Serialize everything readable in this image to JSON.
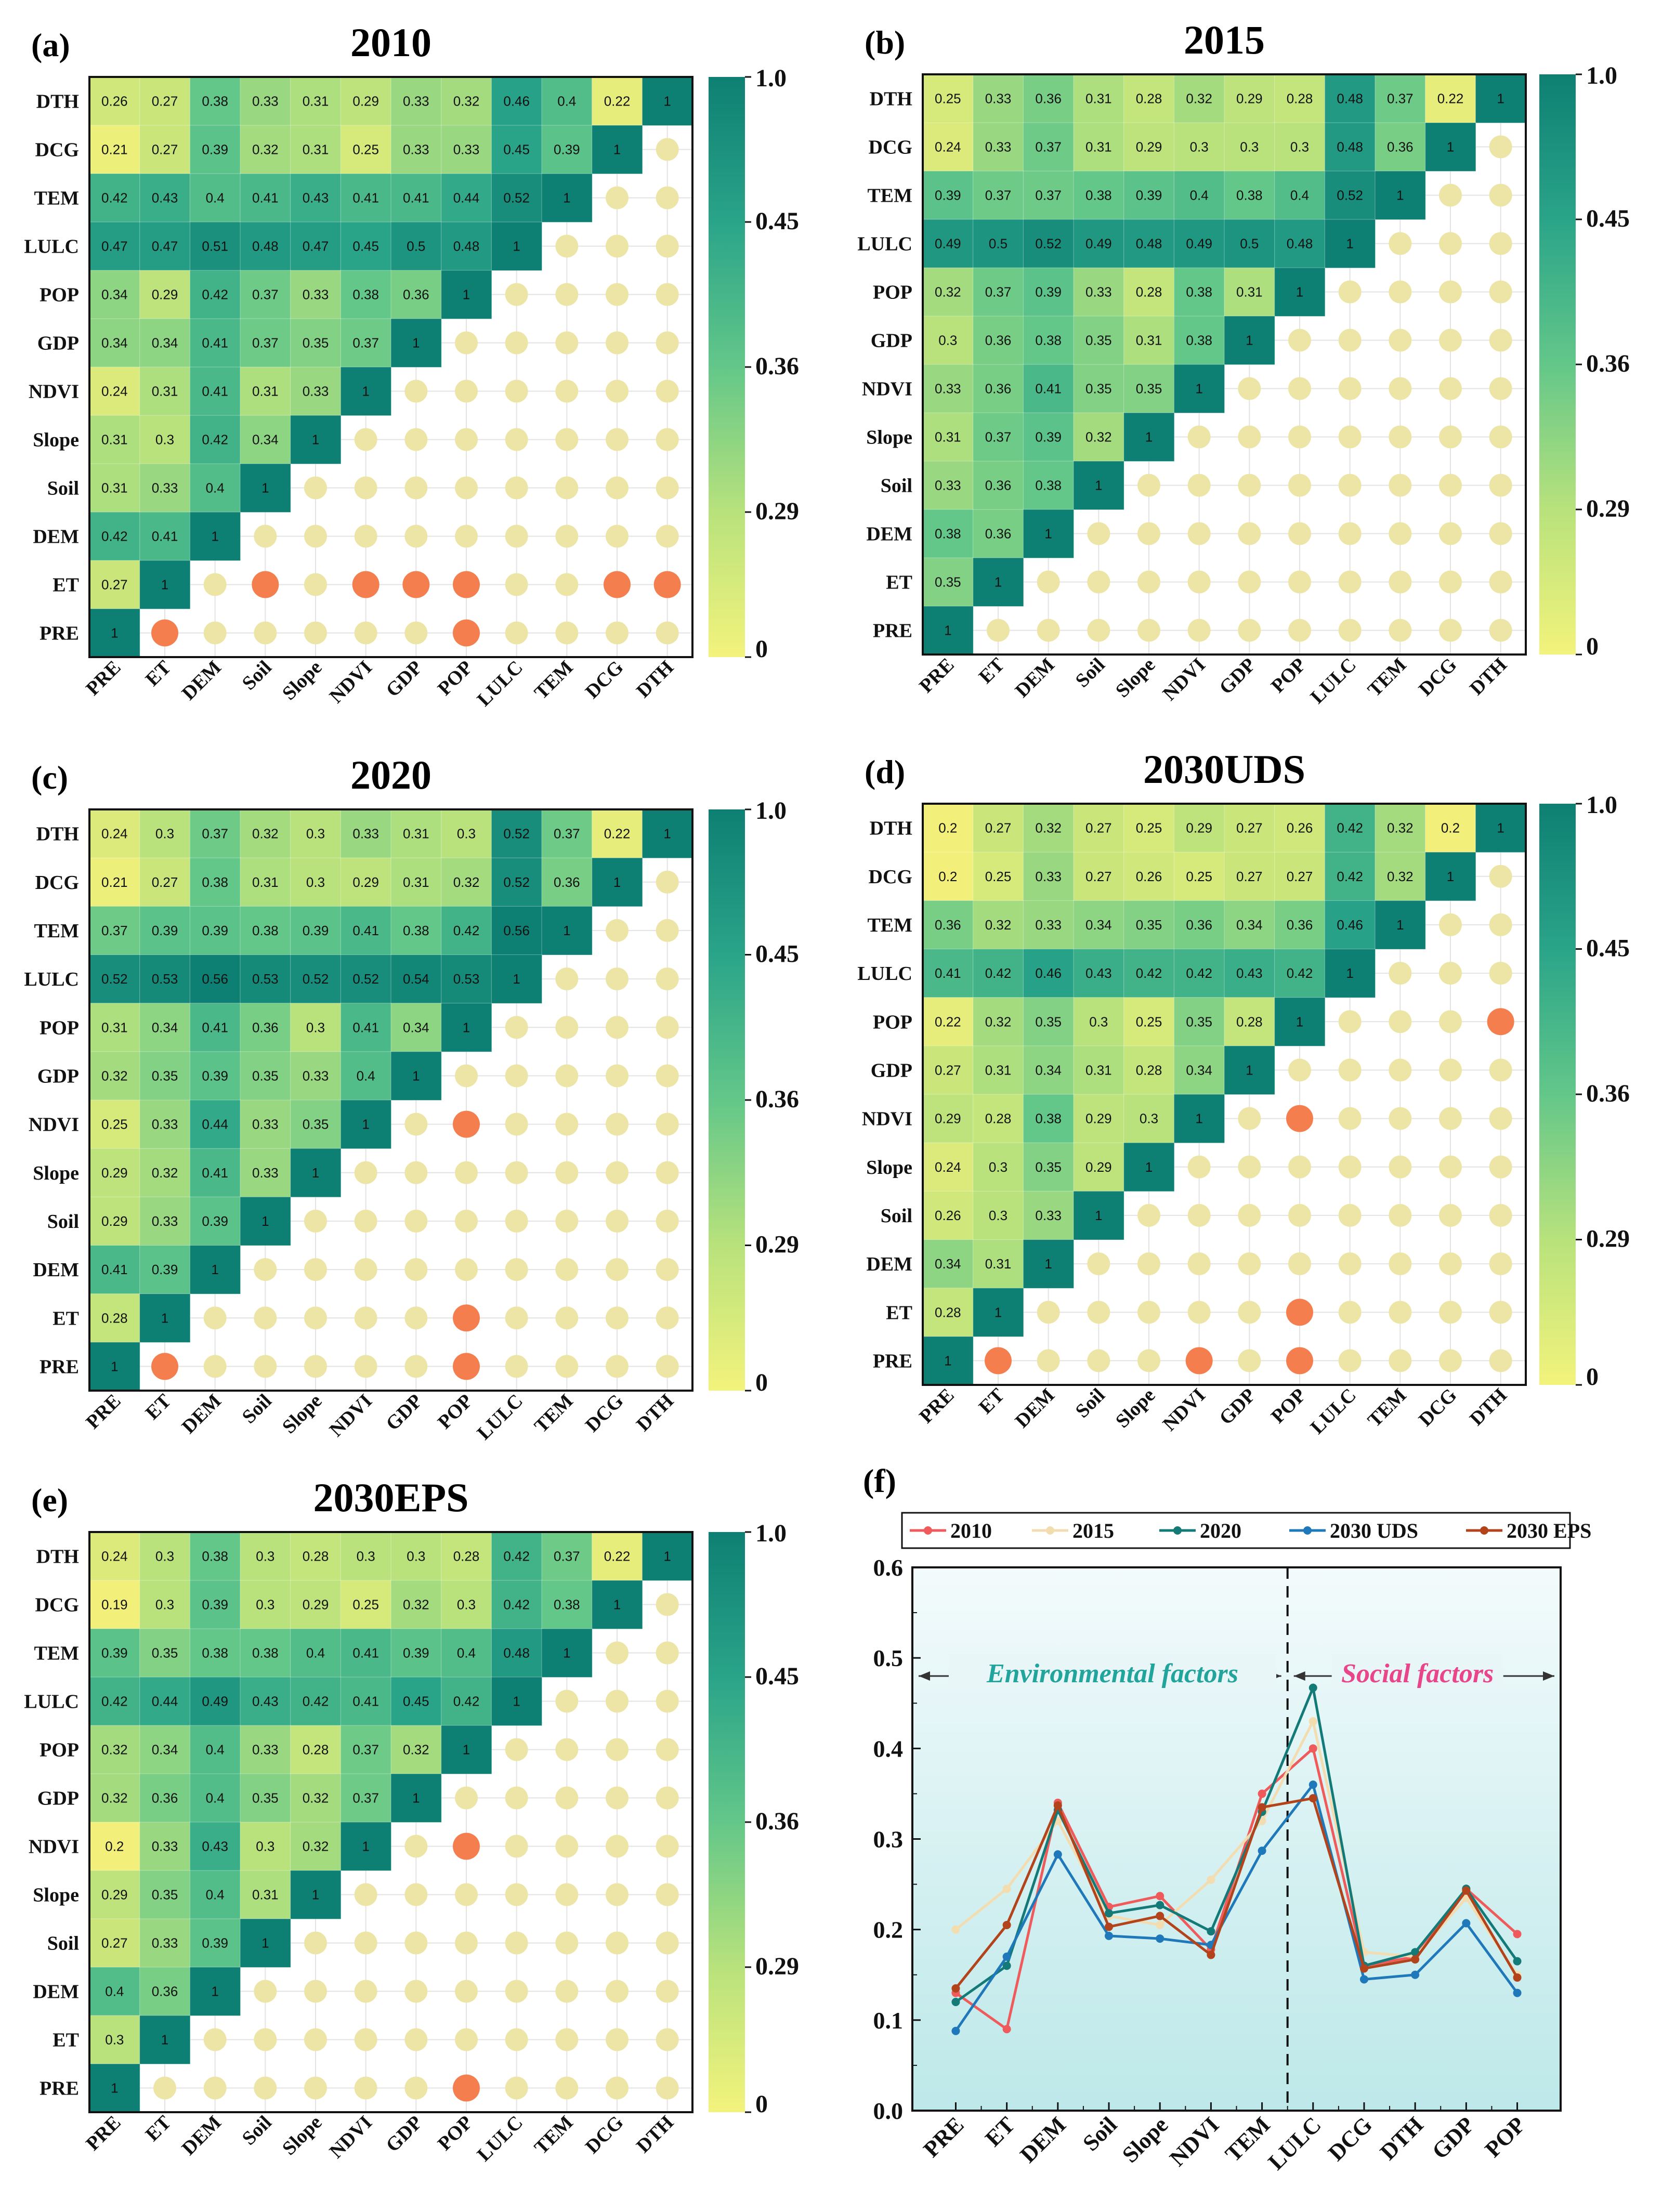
{
  "figure": {
    "factors": [
      "PRE",
      "ET",
      "DEM",
      "Soil",
      "Slope",
      "NDVI",
      "GDP",
      "POP",
      "LULC",
      "TEM",
      "DCG",
      "DTH"
    ],
    "colors": {
      "scale_low": "#f2f07a",
      "scale_mid1": "#b9e27c",
      "scale_mid2": "#63c789",
      "scale_mid3": "#2aa489",
      "scale_high": "#0e8073",
      "insignificant_dot": "#ece5a5",
      "significant_dot": "#f47e4e",
      "grid_line": "#e3e3e3"
    },
    "colorbar_ticks": [
      "1.0",
      "0.45",
      "0.36",
      "0.29",
      "0"
    ],
    "panels": [
      {
        "label": "(a)",
        "title": "2010",
        "cells": {
          "DTH": [
            0.26,
            0.27,
            0.38,
            0.33,
            0.31,
            0.29,
            0.33,
            0.32,
            0.46,
            0.4,
            0.22,
            1
          ],
          "DCG": [
            0.21,
            0.27,
            0.39,
            0.32,
            0.31,
            0.25,
            0.33,
            0.33,
            0.45,
            0.39,
            1
          ],
          "TEM": [
            0.42,
            0.43,
            0.4,
            0.41,
            0.43,
            0.41,
            0.41,
            0.44,
            0.52,
            1
          ],
          "LULC": [
            0.47,
            0.47,
            0.51,
            0.48,
            0.47,
            0.45,
            0.5,
            0.48,
            1
          ],
          "POP": [
            0.34,
            0.29,
            0.42,
            0.37,
            0.33,
            0.38,
            0.36,
            1
          ],
          "GDP": [
            0.34,
            0.34,
            0.41,
            0.37,
            0.35,
            0.37,
            1
          ],
          "NDVI": [
            0.24,
            0.31,
            0.41,
            0.31,
            0.33,
            1
          ],
          "Slope": [
            0.31,
            0.3,
            0.42,
            0.34,
            1
          ],
          "Soil": [
            0.31,
            0.33,
            0.4,
            1
          ],
          "DEM": [
            0.42,
            0.41,
            1
          ],
          "ET": [
            0.27,
            1
          ],
          "PRE": [
            1
          ]
        },
        "significant": [
          [
            "ET",
            "Soil"
          ],
          [
            "ET",
            "NDVI"
          ],
          [
            "ET",
            "GDP"
          ],
          [
            "ET",
            "POP"
          ],
          [
            "ET",
            "DCG"
          ],
          [
            "ET",
            "DTH"
          ],
          [
            "PRE",
            "ET"
          ],
          [
            "PRE",
            "POP"
          ]
        ]
      },
      {
        "label": "(b)",
        "title": "2015",
        "cells": {
          "DTH": [
            0.25,
            0.33,
            0.36,
            0.31,
            0.28,
            0.32,
            0.29,
            0.28,
            0.48,
            0.37,
            0.22,
            1
          ],
          "DCG": [
            0.24,
            0.33,
            0.37,
            0.31,
            0.29,
            0.3,
            0.3,
            0.3,
            0.48,
            0.36,
            1
          ],
          "TEM": [
            0.39,
            0.37,
            0.37,
            0.38,
            0.39,
            0.4,
            0.38,
            0.4,
            0.52,
            1
          ],
          "LULC": [
            0.49,
            0.5,
            0.52,
            0.49,
            0.48,
            0.49,
            0.5,
            0.48,
            1
          ],
          "POP": [
            0.32,
            0.37,
            0.39,
            0.33,
            0.28,
            0.38,
            0.31,
            1
          ],
          "GDP": [
            0.3,
            0.36,
            0.38,
            0.35,
            0.31,
            0.38,
            1
          ],
          "NDVI": [
            0.33,
            0.36,
            0.41,
            0.35,
            0.35,
            1
          ],
          "Slope": [
            0.31,
            0.37,
            0.39,
            0.32,
            1
          ],
          "Soil": [
            0.33,
            0.36,
            0.38,
            1
          ],
          "DEM": [
            0.38,
            0.36,
            1
          ],
          "ET": [
            0.35,
            1
          ],
          "PRE": [
            1
          ]
        },
        "significant": []
      },
      {
        "label": "(c)",
        "title": "2020",
        "cells": {
          "DTH": [
            0.24,
            0.3,
            0.37,
            0.32,
            0.3,
            0.33,
            0.31,
            0.3,
            0.52,
            0.37,
            0.22,
            1
          ],
          "DCG": [
            0.21,
            0.27,
            0.38,
            0.31,
            0.3,
            0.29,
            0.31,
            0.32,
            0.52,
            0.36,
            1
          ],
          "TEM": [
            0.37,
            0.39,
            0.39,
            0.38,
            0.39,
            0.41,
            0.38,
            0.42,
            0.56,
            1
          ],
          "LULC": [
            0.52,
            0.53,
            0.56,
            0.53,
            0.52,
            0.52,
            0.54,
            0.53,
            1
          ],
          "POP": [
            0.31,
            0.34,
            0.41,
            0.36,
            0.3,
            0.41,
            0.34,
            1
          ],
          "GDP": [
            0.32,
            0.35,
            0.39,
            0.35,
            0.33,
            0.4,
            1
          ],
          "NDVI": [
            0.25,
            0.33,
            0.44,
            0.33,
            0.35,
            1
          ],
          "Slope": [
            0.29,
            0.32,
            0.41,
            0.33,
            1
          ],
          "Soil": [
            0.29,
            0.33,
            0.39,
            1
          ],
          "DEM": [
            0.41,
            0.39,
            1
          ],
          "ET": [
            0.28,
            1
          ],
          "PRE": [
            1
          ]
        },
        "significant": [
          [
            "NDVI",
            "POP"
          ],
          [
            "ET",
            "POP"
          ],
          [
            "PRE",
            "ET"
          ],
          [
            "PRE",
            "POP"
          ]
        ]
      },
      {
        "label": "(d)",
        "title": "2030UDS",
        "cells": {
          "DTH": [
            0.2,
            0.27,
            0.32,
            0.27,
            0.25,
            0.29,
            0.27,
            0.26,
            0.42,
            0.32,
            0.2,
            1
          ],
          "DCG": [
            0.2,
            0.25,
            0.33,
            0.27,
            0.26,
            0.25,
            0.27,
            0.27,
            0.42,
            0.32,
            1
          ],
          "TEM": [
            0.36,
            0.32,
            0.33,
            0.34,
            0.35,
            0.36,
            0.34,
            0.36,
            0.46,
            1
          ],
          "LULC": [
            0.41,
            0.42,
            0.46,
            0.43,
            0.42,
            0.42,
            0.43,
            0.42,
            1
          ],
          "POP": [
            0.22,
            0.32,
            0.35,
            0.3,
            0.25,
            0.35,
            0.28,
            1
          ],
          "GDP": [
            0.27,
            0.31,
            0.34,
            0.31,
            0.28,
            0.34,
            1
          ],
          "NDVI": [
            0.29,
            0.28,
            0.38,
            0.29,
            0.3,
            1
          ],
          "Slope": [
            0.24,
            0.3,
            0.35,
            0.29,
            1
          ],
          "Soil": [
            0.26,
            0.3,
            0.33,
            1
          ],
          "DEM": [
            0.34,
            0.31,
            1
          ],
          "ET": [
            0.28,
            1
          ],
          "PRE": [
            1
          ]
        },
        "significant": [
          [
            "POP",
            "DTH"
          ],
          [
            "NDVI",
            "POP"
          ],
          [
            "ET",
            "POP"
          ],
          [
            "PRE",
            "ET"
          ],
          [
            "PRE",
            "NDVI"
          ],
          [
            "PRE",
            "POP"
          ]
        ]
      },
      {
        "label": "(e)",
        "title": "2030EPS",
        "cells": {
          "DTH": [
            0.24,
            0.3,
            0.38,
            0.3,
            0.28,
            0.3,
            0.3,
            0.28,
            0.42,
            0.37,
            0.22,
            1
          ],
          "DCG": [
            0.19,
            0.3,
            0.39,
            0.3,
            0.29,
            0.25,
            0.32,
            0.3,
            0.42,
            0.38,
            1
          ],
          "TEM": [
            0.39,
            0.35,
            0.38,
            0.38,
            0.4,
            0.41,
            0.39,
            0.4,
            0.48,
            1
          ],
          "LULC": [
            0.42,
            0.44,
            0.49,
            0.43,
            0.42,
            0.41,
            0.45,
            0.42,
            1
          ],
          "POP": [
            0.32,
            0.34,
            0.4,
            0.33,
            0.28,
            0.37,
            0.32,
            1
          ],
          "GDP": [
            0.32,
            0.36,
            0.4,
            0.35,
            0.32,
            0.37,
            1
          ],
          "NDVI": [
            0.2,
            0.33,
            0.43,
            0.3,
            0.32,
            1
          ],
          "Slope": [
            0.29,
            0.35,
            0.4,
            0.31,
            1
          ],
          "Soil": [
            0.27,
            0.33,
            0.39,
            1
          ],
          "DEM": [
            0.4,
            0.36,
            1
          ],
          "ET": [
            0.3,
            1
          ],
          "PRE": [
            1
          ]
        },
        "significant": [
          [
            "NDVI",
            "POP"
          ],
          [
            "PRE",
            "POP"
          ]
        ]
      }
    ]
  },
  "chart_data": {
    "type": "line",
    "panel_label": "(f)",
    "categories": [
      "PRE",
      "ET",
      "DEM",
      "Soil",
      "Slope",
      "NDVI",
      "TEM",
      "LULC",
      "DCG",
      "DTH",
      "GDP",
      "POP"
    ],
    "series": [
      {
        "name": "2010",
        "color": "#ef5b5b",
        "values": [
          0.13,
          0.09,
          0.34,
          0.225,
          0.237,
          0.178,
          0.35,
          0.4,
          0.16,
          0.17,
          0.245,
          0.195
        ]
      },
      {
        "name": "2015",
        "color": "#f3ddb0",
        "values": [
          0.2,
          0.245,
          0.32,
          0.215,
          0.205,
          0.255,
          0.32,
          0.43,
          0.175,
          0.17,
          0.235,
          0.15
        ]
      },
      {
        "name": "2020",
        "color": "#137a78",
        "values": [
          0.12,
          0.16,
          0.332,
          0.218,
          0.227,
          0.198,
          0.33,
          0.467,
          0.16,
          0.175,
          0.245,
          0.165
        ]
      },
      {
        "name": "2030 UDS",
        "color": "#1f78b9",
        "values": [
          0.088,
          0.17,
          0.283,
          0.193,
          0.19,
          0.183,
          0.287,
          0.36,
          0.145,
          0.15,
          0.207,
          0.13
        ]
      },
      {
        "name": "2030 EPS",
        "color": "#b3431a",
        "values": [
          0.135,
          0.205,
          0.337,
          0.203,
          0.215,
          0.172,
          0.335,
          0.345,
          0.157,
          0.167,
          0.243,
          0.147
        ]
      }
    ],
    "ylim": [
      0,
      0.6
    ],
    "yticks": [
      "0.0",
      "0.1",
      "0.2",
      "0.3",
      "0.4",
      "0.5",
      "0.6"
    ],
    "annotations": {
      "env": "Environmental factors",
      "soc": "Social factors",
      "env_color": "#21a49b",
      "soc_color": "#e8458b",
      "bg_top": "#f1fafc",
      "bg_bottom": "#bfe9ea"
    }
  }
}
